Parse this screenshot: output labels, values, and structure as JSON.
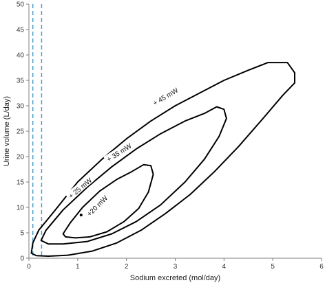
{
  "chart_data": {
    "type": "line",
    "xlabel": "Sodium excreted (mol/day)",
    "ylabel": "Urine volume (L/day)",
    "xlim": [
      0,
      6
    ],
    "ylim": [
      0,
      50
    ],
    "x_ticks": [
      0,
      1,
      2,
      3,
      4,
      5,
      6
    ],
    "y_ticks": [
      0,
      5,
      10,
      15,
      20,
      25,
      30,
      35,
      40,
      45,
      50
    ],
    "grid": false,
    "reference_lines": [
      {
        "x": 0.08,
        "style": "dashed",
        "color": "#4a9fd0"
      },
      {
        "x": 0.26,
        "style": "dashed",
        "color": "#4a9fd0"
      }
    ],
    "contours": [
      {
        "label": "+ 45 mW",
        "label_at": [
          2.8,
          31.8
        ],
        "label_angle": -31,
        "points": [
          [
            0.05,
            1.0
          ],
          [
            0.08,
            3.0
          ],
          [
            0.2,
            5.5
          ],
          [
            0.5,
            9.0
          ],
          [
            1.0,
            15.0
          ],
          [
            1.5,
            19.5
          ],
          [
            2.0,
            23.5
          ],
          [
            2.5,
            27.0
          ],
          [
            3.0,
            30.0
          ],
          [
            3.5,
            32.5
          ],
          [
            4.0,
            35.0
          ],
          [
            4.5,
            37.0
          ],
          [
            4.9,
            38.5
          ],
          [
            5.3,
            38.5
          ],
          [
            5.45,
            36.5
          ],
          [
            5.45,
            34.5
          ],
          [
            5.2,
            32.0
          ],
          [
            4.8,
            27.5
          ],
          [
            4.3,
            22.0
          ],
          [
            3.8,
            17.0
          ],
          [
            3.3,
            12.5
          ],
          [
            2.8,
            8.8
          ],
          [
            2.3,
            5.5
          ],
          [
            1.8,
            3.0
          ],
          [
            1.3,
            1.4
          ],
          [
            0.8,
            0.6
          ],
          [
            0.4,
            0.4
          ],
          [
            0.15,
            0.5
          ],
          [
            0.05,
            1.0
          ]
        ]
      },
      {
        "label": "+ 35 mW",
        "label_at": [
          1.85,
          20.8
        ],
        "label_angle": -33,
        "points": [
          [
            0.25,
            3.5
          ],
          [
            0.35,
            5.5
          ],
          [
            0.7,
            9.5
          ],
          [
            1.2,
            14.0
          ],
          [
            1.7,
            18.0
          ],
          [
            2.2,
            21.5
          ],
          [
            2.7,
            24.5
          ],
          [
            3.2,
            27.0
          ],
          [
            3.6,
            28.5
          ],
          [
            3.85,
            29.8
          ],
          [
            4.0,
            29.3
          ],
          [
            4.05,
            27.5
          ],
          [
            3.9,
            24.0
          ],
          [
            3.6,
            19.5
          ],
          [
            3.2,
            15.0
          ],
          [
            2.7,
            10.5
          ],
          [
            2.2,
            7.2
          ],
          [
            1.7,
            4.8
          ],
          [
            1.2,
            3.3
          ],
          [
            0.7,
            2.8
          ],
          [
            0.4,
            2.8
          ],
          [
            0.25,
            3.5
          ]
        ]
      },
      {
        "label": "+ 25 mW",
        "label_at": [
          1.05,
          13.8
        ],
        "label_angle": -40,
        "points": [
          [
            0.7,
            4.8
          ],
          [
            0.85,
            7.0
          ],
          [
            1.1,
            10.0
          ],
          [
            1.45,
            13.2
          ],
          [
            1.8,
            15.5
          ],
          [
            2.1,
            17.0
          ],
          [
            2.35,
            18.4
          ],
          [
            2.5,
            18.2
          ],
          [
            2.55,
            16.5
          ],
          [
            2.45,
            13.0
          ],
          [
            2.25,
            9.8
          ],
          [
            1.95,
            7.2
          ],
          [
            1.6,
            5.2
          ],
          [
            1.25,
            4.2
          ],
          [
            0.95,
            4.0
          ],
          [
            0.75,
            4.2
          ],
          [
            0.7,
            4.8
          ]
        ]
      },
      {
        "label": "+20 mW",
        "label_at": [
          1.4,
          10.3
        ],
        "label_angle": -45,
        "points": [
          [
            1.07,
            8.5
          ]
        ]
      }
    ]
  }
}
